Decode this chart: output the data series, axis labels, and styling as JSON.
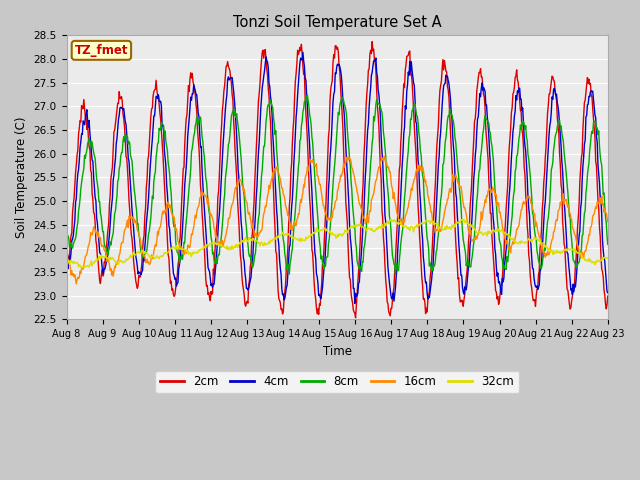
{
  "title": "Tonzi Soil Temperature Set A",
  "xlabel": "Time",
  "ylabel": "Soil Temperature (C)",
  "ylim": [
    22.5,
    28.5
  ],
  "yticks": [
    22.5,
    23.0,
    23.5,
    24.0,
    24.5,
    25.0,
    25.5,
    26.0,
    26.5,
    27.0,
    27.5,
    28.0,
    28.5
  ],
  "xtick_labels": [
    "Aug 8",
    "Aug 9",
    "Aug 10",
    "Aug 11",
    "Aug 12",
    "Aug 13",
    "Aug 14",
    "Aug 15",
    "Aug 16",
    "Aug 17",
    "Aug 18",
    "Aug 19",
    "Aug 20",
    "Aug 21",
    "Aug 22",
    "Aug 23"
  ],
  "series_labels": [
    "2cm",
    "4cm",
    "8cm",
    "16cm",
    "32cm"
  ],
  "series_colors": [
    "#dd0000",
    "#0000cc",
    "#00aa00",
    "#ff8800",
    "#dddd00"
  ],
  "annotation_text": "TZ_fmet",
  "annotation_bg": "#ffffcc",
  "annotation_border": "#996600",
  "annotation_text_color": "#cc0000",
  "plot_bg_color": "#ebebeb",
  "fig_bg_color": "#c8c8c8",
  "grid_color": "#ffffff",
  "n_points": 720,
  "t_days": 15
}
